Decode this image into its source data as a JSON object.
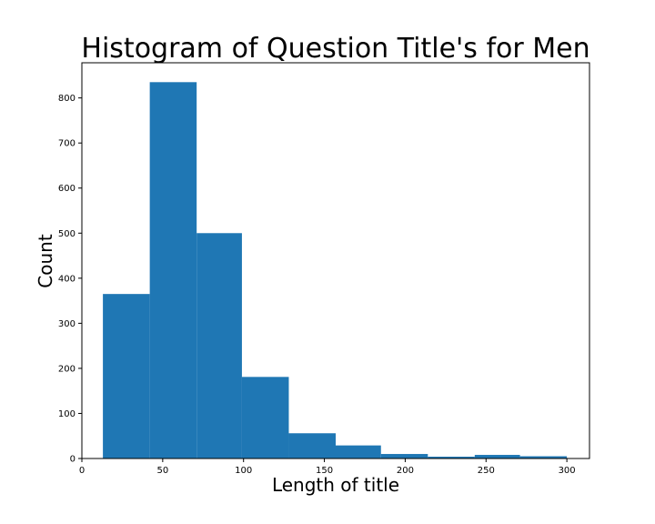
{
  "chart_data": {
    "type": "bar",
    "title": "Histogram of Question Title's for Men",
    "xlabel": "Length of title",
    "ylabel": "Count",
    "bins": [
      {
        "start": 13,
        "end": 42,
        "count": 365
      },
      {
        "start": 42,
        "end": 71,
        "count": 835
      },
      {
        "start": 71,
        "end": 99,
        "count": 500
      },
      {
        "start": 99,
        "end": 128,
        "count": 181
      },
      {
        "start": 128,
        "end": 157,
        "count": 56
      },
      {
        "start": 157,
        "end": 185,
        "count": 29
      },
      {
        "start": 185,
        "end": 214,
        "count": 10
      },
      {
        "start": 214,
        "end": 243,
        "count": 4
      },
      {
        "start": 243,
        "end": 271,
        "count": 8
      },
      {
        "start": 271,
        "end": 300,
        "count": 5
      }
    ],
    "xlim": [
      0,
      314
    ],
    "ylim": [
      0,
      878
    ],
    "xticks": [
      0,
      50,
      100,
      150,
      200,
      250,
      300
    ],
    "yticks": [
      0,
      100,
      200,
      300,
      400,
      500,
      600,
      700,
      800
    ],
    "bar_color": "#1f77b4",
    "grid": false,
    "legend": "none"
  }
}
